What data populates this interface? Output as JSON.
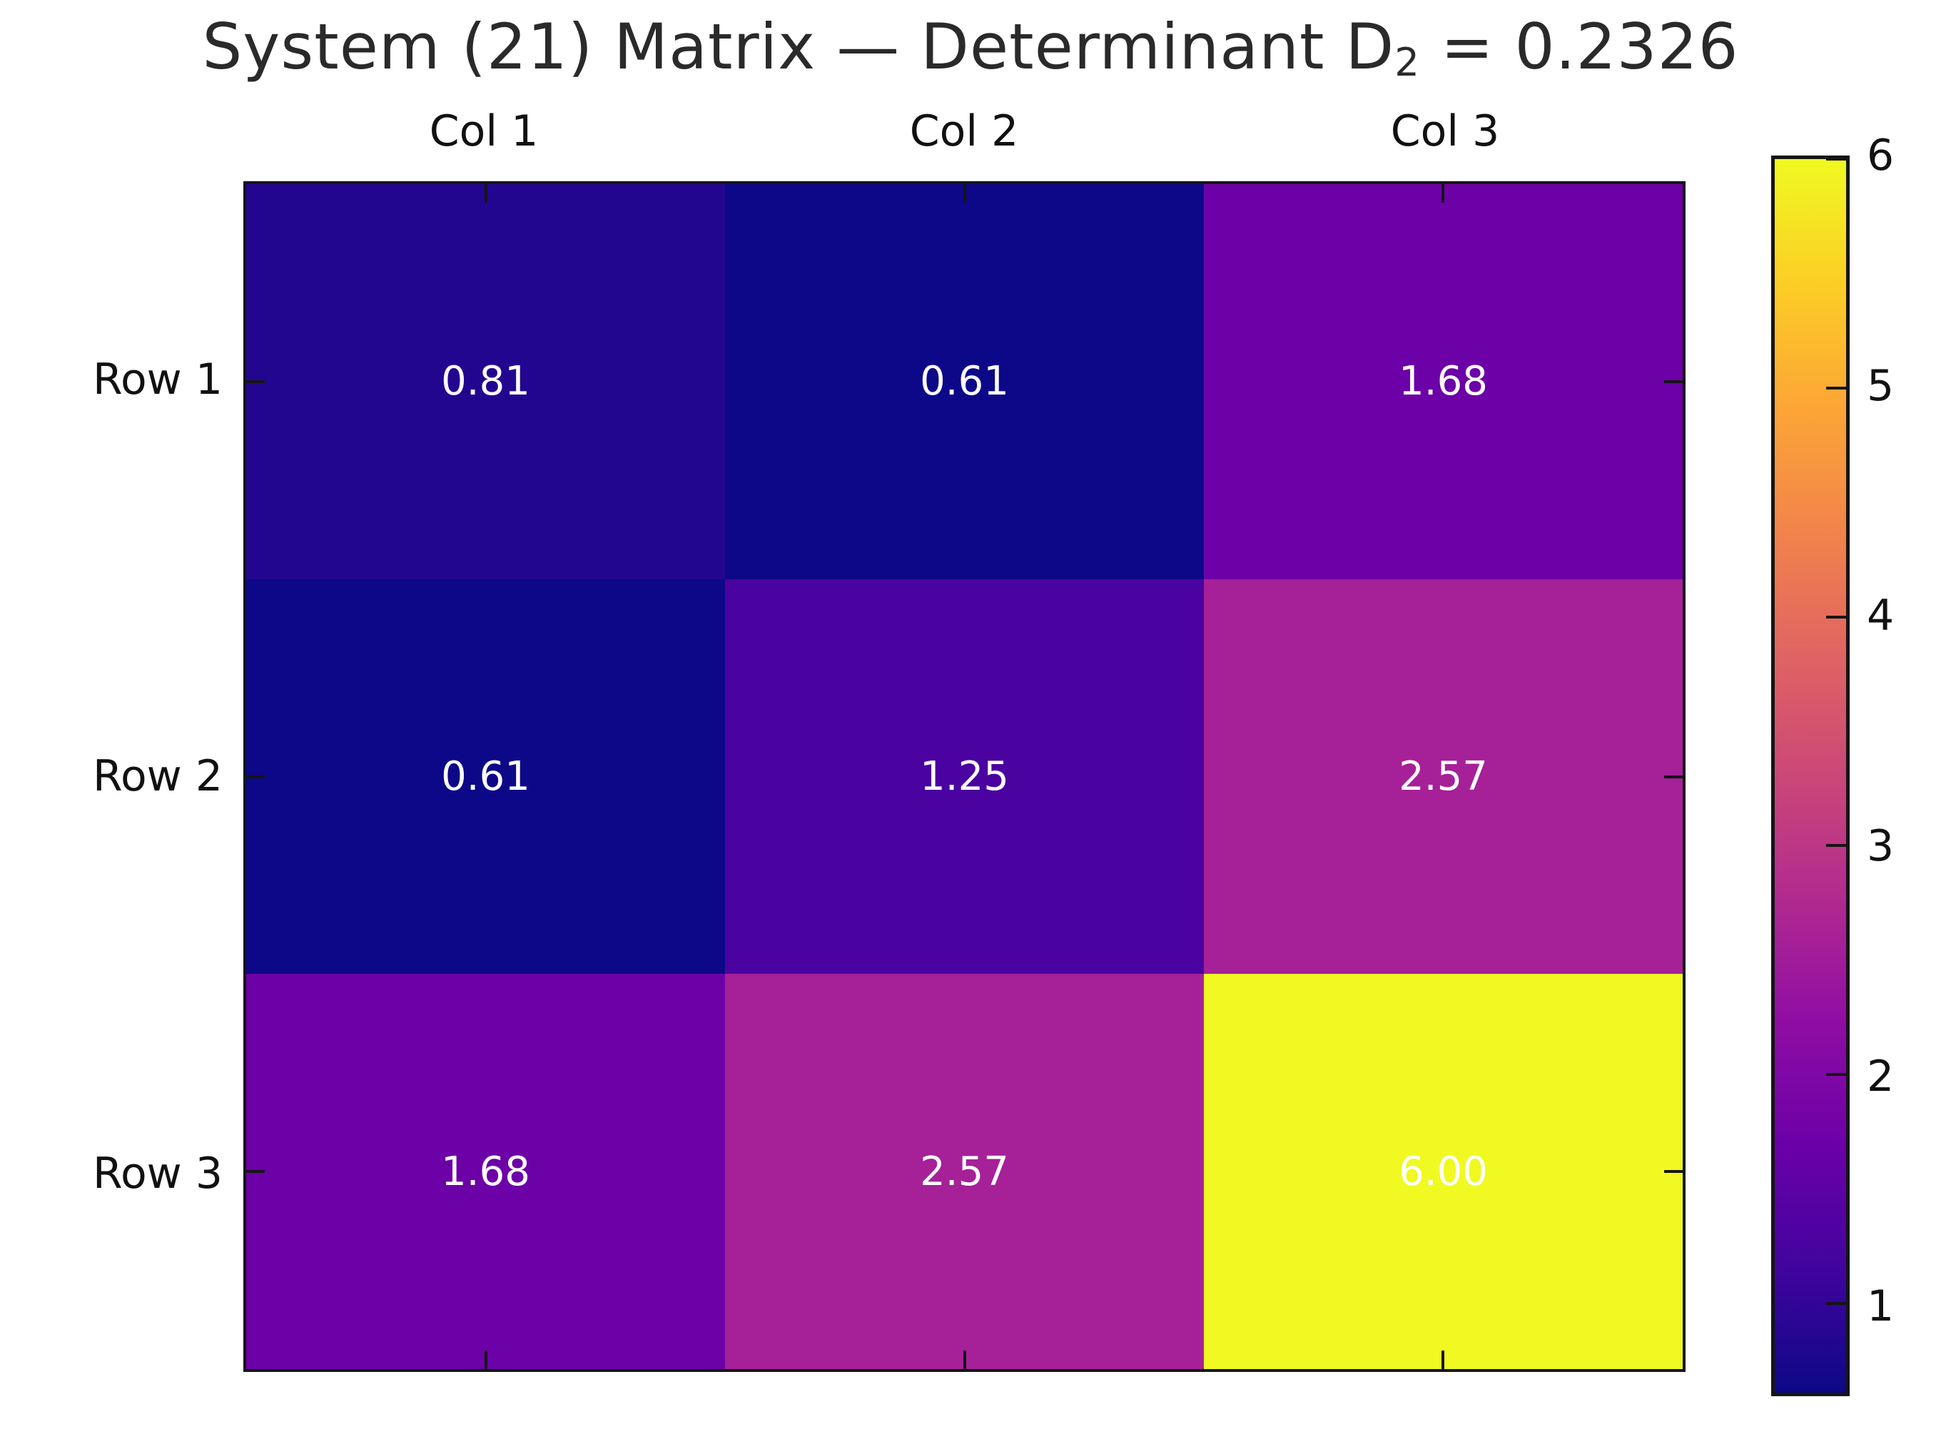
{
  "title": {
    "prefix": "System (21) Matrix — Determinant D",
    "subscript": "2",
    "suffix": " = 0.2326",
    "full": "System (21) Matrix — Determinant D₂ = 0.2326"
  },
  "chart_data": {
    "type": "heatmap",
    "title": "System (21) Matrix — Determinant D₂ = 0.2326",
    "columns": [
      "Col 1",
      "Col 2",
      "Col 3"
    ],
    "rows": [
      "Row 1",
      "Row 2",
      "Row 3"
    ],
    "values": [
      [
        0.81,
        0.61,
        1.68
      ],
      [
        0.61,
        1.25,
        2.57
      ],
      [
        1.68,
        2.57,
        6.0
      ]
    ],
    "value_labels": [
      [
        "0.81",
        "0.61",
        "1.68"
      ],
      [
        "0.61",
        "1.25",
        "2.57"
      ],
      [
        "1.68",
        "2.57",
        "6.00"
      ]
    ],
    "cell_colors": [
      [
        "#230690",
        "#0d0887",
        "#6c01a7"
      ],
      [
        "#0d0887",
        "#4a02a0",
        "#a62098"
      ],
      [
        "#6c01a7",
        "#a62098",
        "#f0f921"
      ]
    ],
    "cell_text_color": "#ffffff",
    "colormap": "plasma",
    "grid": false,
    "legend_position": "colorbar-right",
    "colorbar": {
      "vmin": 0.61,
      "vmax": 6.0,
      "ticks": [
        6,
        5,
        4,
        3,
        2,
        1
      ],
      "gradient_stops": [
        "#0d0887",
        "#41049d",
        "#6b00a8",
        "#8f0da4",
        "#b12a90",
        "#cc4778",
        "#e16462",
        "#f2844b",
        "#fca636",
        "#fcce25",
        "#f0f921"
      ]
    }
  }
}
